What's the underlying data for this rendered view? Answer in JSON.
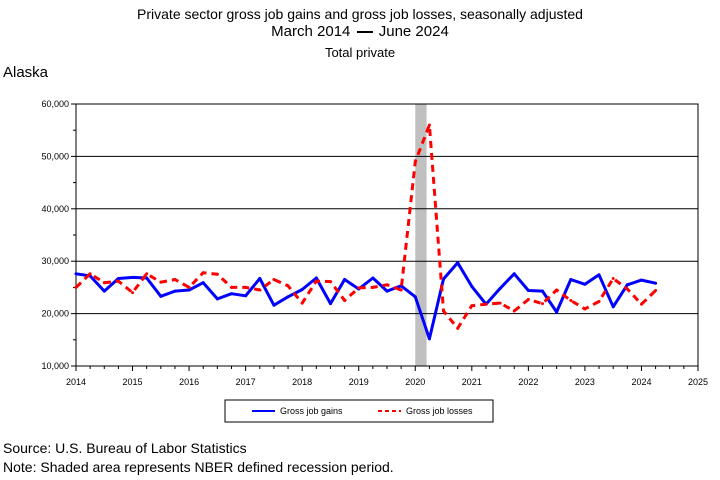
{
  "title": "Private sector gross job gains and gross job losses, seasonally adjusted",
  "subtitle_left": "March 2014",
  "subtitle_right": "June 2024",
  "subtitle3": "Total private",
  "region": "Alaska",
  "source": "Source: U.S. Bureau of Labor Statistics",
  "note": "Note: Shaded area represents NBER defined recession period.",
  "colors": {
    "gains": "#0000ff",
    "losses": "#ff0000",
    "recession": "#c0c0c0"
  },
  "chart_data": {
    "type": "line",
    "ylim": [
      10000,
      60000
    ],
    "xlim": [
      2014,
      2025
    ],
    "y_ticks": [
      "10,000",
      "20,000",
      "30,000",
      "40,000",
      "50,000",
      "60,000"
    ],
    "y_tick_values": [
      10000,
      20000,
      30000,
      40000,
      50000,
      60000
    ],
    "x_ticks": [
      "2014",
      "2015",
      "2016",
      "2017",
      "2018",
      "2019",
      "2020",
      "2021",
      "2022",
      "2023",
      "2024",
      "2025"
    ],
    "x_tick_values": [
      2014,
      2015,
      2016,
      2017,
      2018,
      2019,
      2020,
      2021,
      2022,
      2023,
      2024,
      2025
    ],
    "grid": true,
    "legend_position": "bottom",
    "recession": [
      2020.0,
      2020.2
    ],
    "x": [
      2014.0,
      2014.25,
      2014.5,
      2014.75,
      2015.0,
      2015.25,
      2015.5,
      2015.75,
      2016.0,
      2016.25,
      2016.5,
      2016.75,
      2017.0,
      2017.25,
      2017.5,
      2017.75,
      2018.0,
      2018.25,
      2018.5,
      2018.75,
      2019.0,
      2019.25,
      2019.5,
      2019.75,
      2020.0,
      2020.25,
      2020.5,
      2020.75,
      2021.0,
      2021.25,
      2021.5,
      2021.75,
      2022.0,
      2022.25,
      2022.5,
      2022.75,
      2023.0,
      2023.25,
      2023.5,
      2023.75,
      2024.0,
      2024.25
    ],
    "series": [
      {
        "name": "Gross job gains",
        "style": "solid",
        "values": [
          27600,
          27200,
          24300,
          26700,
          26900,
          26800,
          23300,
          24300,
          24500,
          25900,
          22800,
          23800,
          23400,
          26700,
          21600,
          23200,
          24600,
          26800,
          21900,
          26500,
          24700,
          26800,
          24300,
          25300,
          23200,
          15200,
          26600,
          29700,
          25200,
          21800,
          24800,
          27600,
          24400,
          24300,
          20300,
          26500,
          25600,
          27400,
          21300,
          25500,
          26400,
          25800
        ]
      },
      {
        "name": "Gross job losses",
        "style": "dashed",
        "values": [
          25000,
          27600,
          25900,
          26200,
          24000,
          27600,
          26000,
          26500,
          25000,
          27800,
          27500,
          25000,
          25000,
          24500,
          26500,
          25300,
          22000,
          26200,
          26100,
          22500,
          24900,
          25000,
          25500,
          24500,
          49000,
          56000,
          20500,
          17200,
          21500,
          21800,
          22000,
          20500,
          22700,
          21900,
          24500,
          22500,
          20900,
          22300,
          26700,
          24700,
          21800,
          24400
        ]
      }
    ]
  }
}
